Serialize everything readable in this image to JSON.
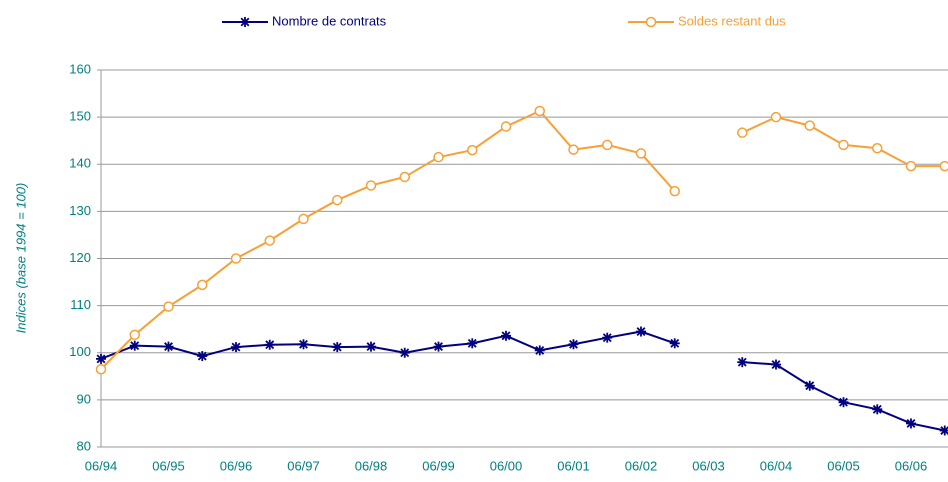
{
  "chart_data": {
    "type": "line",
    "y_label": "Indices (base 1994 = 100)",
    "categories": [
      "06/94",
      null,
      "06/95",
      null,
      "06/96",
      null,
      "06/97",
      null,
      "06/98",
      null,
      "06/99",
      null,
      "06/00",
      null,
      "06/01",
      null,
      "06/02",
      null,
      "06/03",
      null,
      "06/04",
      null,
      "06/05",
      null,
      "06/06",
      null
    ],
    "series": [
      {
        "name": "Nombre de contrats",
        "color": "#000080",
        "marker": "star",
        "values": [
          98.7,
          101.5,
          101.3,
          99.3,
          101.2,
          101.7,
          101.8,
          101.2,
          101.3,
          100,
          101.3,
          102,
          103.6,
          100.5,
          101.8,
          103.2,
          104.5,
          102,
          null,
          98,
          97.5,
          93,
          89.5,
          88,
          85,
          83.5
        ]
      },
      {
        "name": "Soldes restant dus",
        "color": "#f7a035",
        "marker": "circle",
        "values": [
          96.5,
          103.8,
          109.8,
          114.4,
          120,
          123.8,
          128.4,
          132.4,
          135.5,
          137.3,
          141.5,
          143,
          148,
          151.3,
          143.1,
          144.1,
          142.3,
          134.3,
          null,
          146.7,
          150,
          148.2,
          144.1,
          143.4,
          139.6,
          139.6
        ]
      }
    ],
    "ylim": [
      80,
      160
    ],
    "yticks": [
      80,
      90,
      100,
      110,
      120,
      130,
      140,
      150,
      160
    ],
    "grid": true
  }
}
